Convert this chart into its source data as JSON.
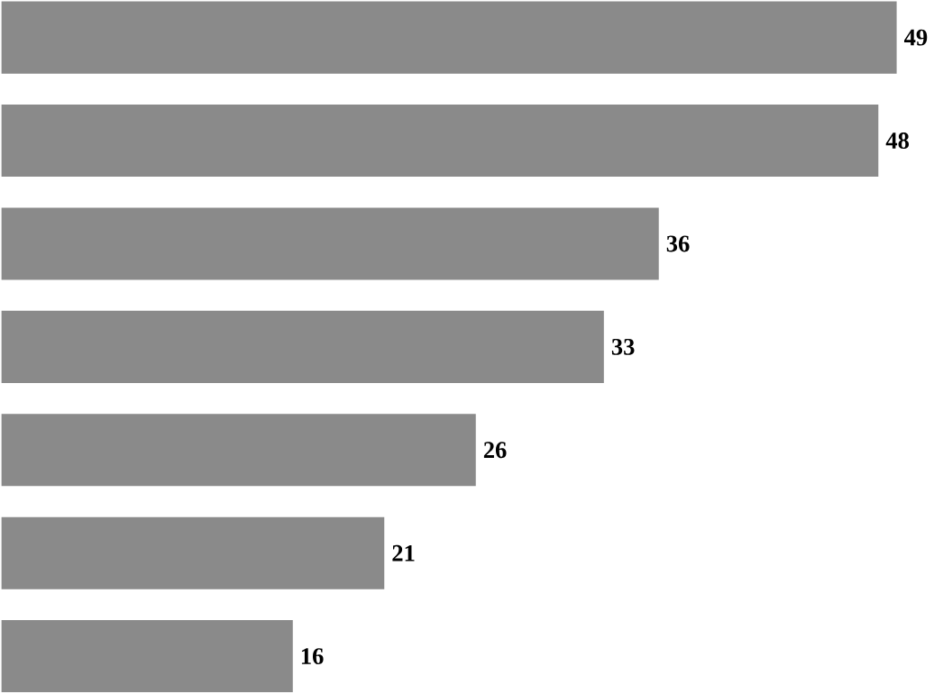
{
  "chart_data": {
    "type": "bar",
    "orientation": "horizontal",
    "categories": [
      null,
      null,
      null,
      null,
      null,
      null,
      null
    ],
    "values": [
      49,
      48,
      36,
      33,
      26,
      21,
      16
    ],
    "color": "#8a8a8a",
    "data_labels": true
  }
}
